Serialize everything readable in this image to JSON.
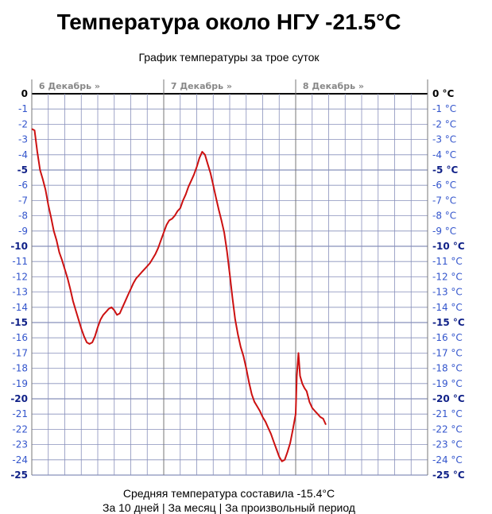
{
  "page": {
    "title": "Температура около НГУ -21.5°C",
    "footer_average": "Средняя температура составила -15.4°C",
    "footer_links": [
      "За 10 дней",
      "За месяц",
      "За произвольный период"
    ],
    "footer_separator": " | "
  },
  "colors": {
    "line": "#cc1111",
    "grid": "#8890bb",
    "day_line": "#777777",
    "day_label": "#888888",
    "axis_label_left": "#3355cc",
    "axis_label_right": "#3355cc",
    "axis_label_bold": "#112288"
  },
  "chart_data": {
    "type": "line",
    "title": "График температуры за трое суток",
    "xlabel": "",
    "ylabel": "",
    "ylim": [
      -25,
      0
    ],
    "yticks_left": [
      "0",
      "-1",
      "-2",
      "-3",
      "-4",
      "-5",
      "-6",
      "-7",
      "-8",
      "-9",
      "-10",
      "-11",
      "-12",
      "-13",
      "-14",
      "-15",
      "-16",
      "-17",
      "-18",
      "-19",
      "-20",
      "-21",
      "-22",
      "-23",
      "-24",
      "-25"
    ],
    "yticks_right": [
      "0 °C",
      "-1 °C",
      "-2 °C",
      "-3 °C",
      "-4 °C",
      "-5 °C",
      "-6 °C",
      "-7 °C",
      "-8 °C",
      "-9 °C",
      "-10 °C",
      "-11 °C",
      "-12 °C",
      "-13 °C",
      "-14 °C",
      "-15 °C",
      "-16 °C",
      "-17 °C",
      "-18 °C",
      "-19 °C",
      "-20 °C",
      "-21 °C",
      "-22 °C",
      "-23 °C",
      "-24 °C",
      "-25 °C"
    ],
    "bold_ticks": [
      0,
      -5,
      -10,
      -15,
      -20,
      -25
    ],
    "grid": true,
    "x_range_hours": [
      0,
      72
    ],
    "day_labels": [
      {
        "label": "6 Декабрь »",
        "hour": 1
      },
      {
        "label": "7 Декабрь »",
        "hour": 25
      },
      {
        "label": "8 Декабрь »",
        "hour": 49
      }
    ],
    "series": [
      {
        "values": [
          [
            0,
            -2.3
          ],
          [
            0.5,
            -2.4
          ],
          [
            1,
            -3.8
          ],
          [
            1.5,
            -5.0
          ],
          [
            2,
            -5.6
          ],
          [
            2.5,
            -6.3
          ],
          [
            3,
            -7.3
          ],
          [
            3.5,
            -8.1
          ],
          [
            4,
            -9.0
          ],
          [
            4.5,
            -9.6
          ],
          [
            5,
            -10.4
          ],
          [
            5.5,
            -10.9
          ],
          [
            6,
            -11.5
          ],
          [
            6.5,
            -12.1
          ],
          [
            7,
            -12.8
          ],
          [
            7.5,
            -13.6
          ],
          [
            8,
            -14.2
          ],
          [
            8.5,
            -14.8
          ],
          [
            9,
            -15.4
          ],
          [
            9.5,
            -15.9
          ],
          [
            10,
            -16.3
          ],
          [
            10.5,
            -16.4
          ],
          [
            11,
            -16.3
          ],
          [
            11.5,
            -15.9
          ],
          [
            12,
            -15.3
          ],
          [
            12.5,
            -14.8
          ],
          [
            13,
            -14.5
          ],
          [
            13.5,
            -14.3
          ],
          [
            14,
            -14.1
          ],
          [
            14.5,
            -14.0
          ],
          [
            15,
            -14.2
          ],
          [
            15.5,
            -14.5
          ],
          [
            16,
            -14.4
          ],
          [
            16.5,
            -14.0
          ],
          [
            17,
            -13.6
          ],
          [
            17.5,
            -13.2
          ],
          [
            18,
            -12.8
          ],
          [
            18.5,
            -12.4
          ],
          [
            19,
            -12.1
          ],
          [
            19.5,
            -11.9
          ],
          [
            20,
            -11.7
          ],
          [
            20.5,
            -11.5
          ],
          [
            21,
            -11.3
          ],
          [
            21.5,
            -11.1
          ],
          [
            22,
            -10.8
          ],
          [
            22.5,
            -10.5
          ],
          [
            23,
            -10.1
          ],
          [
            23.5,
            -9.6
          ],
          [
            24,
            -9.1
          ],
          [
            24.5,
            -8.6
          ],
          [
            25,
            -8.3
          ],
          [
            25.5,
            -8.2
          ],
          [
            26,
            -8.0
          ],
          [
            26.5,
            -7.7
          ],
          [
            27,
            -7.5
          ],
          [
            27.5,
            -7.0
          ],
          [
            28,
            -6.6
          ],
          [
            28.5,
            -6.1
          ],
          [
            29,
            -5.7
          ],
          [
            29.5,
            -5.3
          ],
          [
            30,
            -4.8
          ],
          [
            30.5,
            -4.2
          ],
          [
            31,
            -3.8
          ],
          [
            31.5,
            -4.0
          ],
          [
            32,
            -4.6
          ],
          [
            32.5,
            -5.2
          ],
          [
            33,
            -6.0
          ],
          [
            33.5,
            -6.8
          ],
          [
            34,
            -7.6
          ],
          [
            34.5,
            -8.3
          ],
          [
            35,
            -9.1
          ],
          [
            35.5,
            -10.3
          ],
          [
            36,
            -11.8
          ],
          [
            36.5,
            -13.4
          ],
          [
            37,
            -14.8
          ],
          [
            37.5,
            -15.8
          ],
          [
            38,
            -16.6
          ],
          [
            38.5,
            -17.2
          ],
          [
            39,
            -18.0
          ],
          [
            39.5,
            -18.9
          ],
          [
            40,
            -19.7
          ],
          [
            40.5,
            -20.2
          ],
          [
            41,
            -20.5
          ],
          [
            41.5,
            -20.8
          ],
          [
            42,
            -21.2
          ],
          [
            42.5,
            -21.5
          ],
          [
            43,
            -21.9
          ],
          [
            43.5,
            -22.3
          ],
          [
            44,
            -22.8
          ],
          [
            44.5,
            -23.3
          ],
          [
            45,
            -23.8
          ],
          [
            45.5,
            -24.1
          ],
          [
            46,
            -24.0
          ],
          [
            46.5,
            -23.5
          ],
          [
            47,
            -22.9
          ],
          [
            47.5,
            -22.0
          ],
          [
            48,
            -21.0
          ],
          [
            48.2,
            -18.5
          ],
          [
            48.5,
            -17.0
          ],
          [
            48.8,
            -18.5
          ],
          [
            49.2,
            -19.0
          ],
          [
            49.6,
            -19.3
          ],
          [
            50,
            -19.5
          ],
          [
            50.5,
            -20.2
          ],
          [
            51,
            -20.6
          ],
          [
            51.5,
            -20.8
          ],
          [
            52,
            -21.0
          ],
          [
            52.5,
            -21.2
          ],
          [
            53,
            -21.3
          ],
          [
            53.5,
            -21.7
          ]
        ]
      }
    ]
  }
}
